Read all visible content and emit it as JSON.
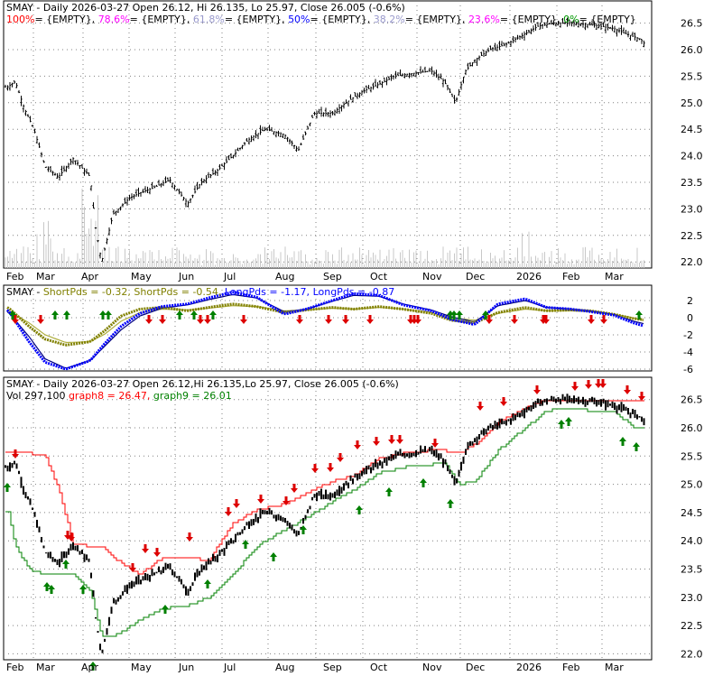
{
  "colors": {
    "background": "#ffffff",
    "frame": "#000000",
    "grid": "#808080",
    "price_bar": "#000000",
    "volume": "#c8c8c8",
    "fib_100": "#ff0000",
    "fib_78_6": "#ff00ff",
    "fib_61_8": "#9999cc",
    "fib_50": "#0000ff",
    "fib_38_2": "#9999cc",
    "fib_23_6": "#ff00ff",
    "fib_0": "#009900",
    "short_pds": "#808000",
    "short_pds_signal": "#808000",
    "long_pds": "#0000ff",
    "long_pds_signal": "#000080",
    "graph8": "#ff0000",
    "graph9": "#008000",
    "buy_arrow": "#008000",
    "sell_arrow": "#dd0000",
    "muted_text": "#000000"
  },
  "panel1": {
    "title": "SMAY - Daily 2026-03-27 Open 26.12, Hi 26.135, Lo 25.97, Close 26.005 (-0.6%)",
    "fib_legend": [
      {
        "label": "100%",
        "text": "= {EMPTY},",
        "color": "#ff0000"
      },
      {
        "label": "78.6%",
        "text": "= {EMPTY},",
        "color": "#ff00ff"
      },
      {
        "label": "61.8%",
        "text": "= {EMPTY},",
        "color": "#9999cc"
      },
      {
        "label": "50%",
        "text": "= {EMPTY},",
        "color": "#0000ff"
      },
      {
        "label": "38.2%",
        "text": "= {EMPTY},",
        "color": "#9999cc"
      },
      {
        "label": "23.6%",
        "text": "= {EMPTY},",
        "color": "#ff00ff"
      },
      {
        "label": "0%",
        "text": "= {EMPTY}",
        "color": "#009900"
      }
    ],
    "y_ticks": [
      "26.5",
      "26.0",
      "25.5",
      "25.0",
      "24.5",
      "24.0",
      "23.5",
      "23.0",
      "22.5",
      "22.0"
    ],
    "x_ticks": [
      "Feb",
      "Mar",
      "Apr",
      "May",
      "Jun",
      "Jul",
      "Aug",
      "Sep",
      "Oct",
      "Nov",
      "Dec",
      "2026",
      "Feb",
      "Mar"
    ]
  },
  "panel2": {
    "legend": [
      {
        "label": "SMAY - ",
        "color": "#000000"
      },
      {
        "label": "ShortPds = -0.32,",
        "color": "#808000"
      },
      {
        "label": "ShortPds = -0.54,",
        "color": "#808000"
      },
      {
        "label": "LongPds = -1.17,",
        "color": "#0000ff"
      },
      {
        "label": "LongPds = -0.87",
        "color": "#0000ff"
      }
    ],
    "y_ticks": [
      "2",
      "0",
      "-2",
      "-4",
      "-6"
    ]
  },
  "panel3": {
    "title": "SMAY - Daily 2026-03-27 Open 26.12,Hi 26.135,Lo 25.97, Close 26.005 (-0.6%)",
    "legend": [
      {
        "label": "Vol 297,100",
        "color": "#000000"
      },
      {
        "label": "graph8 = 26.47,",
        "color": "#ff0000"
      },
      {
        "label": "graph9 = 26.01",
        "color": "#008000"
      }
    ],
    "y_ticks": [
      "26.5",
      "26.0",
      "25.5",
      "25.0",
      "24.5",
      "24.0",
      "23.5",
      "23.0",
      "22.5",
      "22.0"
    ],
    "x_ticks": [
      "Feb",
      "Mar",
      "Apr",
      "May",
      "Jun",
      "Jul",
      "Aug",
      "Sep",
      "Oct",
      "Nov",
      "Dec",
      "2026",
      "Feb",
      "Mar"
    ]
  },
  "chart_data": [
    {
      "type": "line",
      "title": "SMAY - Daily 2026-03-27 Open 26.12, Hi 26.135, Lo 25.97, Close 26.005 (-0.6%)",
      "ylim": [
        21.8,
        26.75
      ],
      "x": [
        "Jan 24",
        "Feb 1",
        "Feb 10",
        "Feb 20",
        "Mar 1",
        "Mar 10",
        "Mar 20",
        "Apr 1",
        "Apr 4",
        "Apr 8",
        "Apr 15",
        "Apr 25",
        "May 1",
        "May 10",
        "May 20",
        "Jun 1",
        "Jun 10",
        "Jun 20",
        "Jul 1",
        "Jul 10",
        "Jul 20",
        "Aug 1",
        "Aug 10",
        "Aug 20",
        "Sep 1",
        "Sep 10",
        "Sep 20",
        "Oct 1",
        "Oct 10",
        "Oct 20",
        "Nov 1",
        "Nov 10",
        "Nov 18",
        "Nov 25",
        "Dec 1",
        "Dec 10",
        "Dec 20",
        "Jan 1",
        "Jan 10",
        "Jan 20",
        "Feb 1",
        "Feb 10",
        "Feb 20",
        "Mar 1",
        "Mar 10",
        "Mar 20",
        "Mar 27"
      ],
      "series": [
        {
          "values": [
            25.3,
            25.4,
            24.9,
            24.5,
            23.8,
            23.6,
            23.95,
            23.6,
            22.7,
            22.0,
            22.9,
            23.2,
            23.3,
            23.4,
            23.55,
            23.1,
            23.5,
            23.7,
            24.0,
            24.3,
            24.5,
            24.4,
            24.1,
            24.8,
            24.8,
            25.0,
            25.2,
            25.35,
            25.5,
            25.55,
            25.6,
            25.4,
            25.0,
            25.6,
            25.8,
            26.0,
            26.1,
            26.3,
            26.45,
            26.5,
            26.5,
            26.48,
            26.45,
            26.4,
            26.3,
            26.2,
            26.005
          ]
        }
      ]
    },
    {
      "type": "line",
      "ylim": [
        -7,
        3.5
      ],
      "x": [
        "Jan 24",
        "Feb 15",
        "Mar 1",
        "Mar 15",
        "Apr 1",
        "Apr 10",
        "Apr 20",
        "May 1",
        "May 15",
        "Jun 1",
        "Jun 15",
        "Jul 1",
        "Jul 15",
        "Aug 1",
        "Aug 15",
        "Sep 1",
        "Sep 15",
        "Oct 1",
        "Oct 15",
        "Nov 1",
        "Nov 15",
        "Dec 1",
        "Dec 15",
        "Jan 1",
        "Jan 15",
        "Feb 1",
        "Feb 15",
        "Mar 1",
        "Mar 15",
        "Mar 27"
      ],
      "series": [
        {
          "name": "ShortPds",
          "values": [
            1.2,
            -1.0,
            -2.5,
            -3.2,
            -2.8,
            -1.5,
            0.2,
            1.0,
            1.2,
            0.8,
            1.2,
            1.6,
            1.3,
            0.6,
            0.9,
            1.2,
            1.0,
            1.3,
            1.0,
            0.5,
            -0.3,
            -0.6,
            0.6,
            1.2,
            0.8,
            0.9,
            0.8,
            0.4,
            -0.1,
            -0.32
          ]
        },
        {
          "name": "ShortPds",
          "values": [
            0.8,
            -0.6,
            -2.0,
            -2.9,
            -2.8,
            -1.9,
            -0.4,
            0.6,
            1.0,
            0.9,
            1.1,
            1.4,
            1.3,
            0.8,
            0.9,
            1.1,
            1.0,
            1.2,
            1.0,
            0.6,
            0.0,
            -0.3,
            0.5,
            1.0,
            0.8,
            0.8,
            0.7,
            0.4,
            0.0,
            -0.54
          ]
        },
        {
          "name": "LongPds",
          "values": [
            0.9,
            -2.8,
            -5.2,
            -6.0,
            -5.0,
            -3.0,
            -1.0,
            0.5,
            1.3,
            1.6,
            2.3,
            3.0,
            2.4,
            0.4,
            1.0,
            2.0,
            2.8,
            2.6,
            1.5,
            0.8,
            -0.2,
            -0.8,
            1.6,
            2.2,
            1.2,
            1.0,
            0.7,
            0.3,
            -0.6,
            -1.17
          ]
        },
        {
          "name": "LongPds",
          "values": [
            0.7,
            -2.2,
            -4.8,
            -5.9,
            -5.0,
            -3.3,
            -1.4,
            0.2,
            1.1,
            1.5,
            2.1,
            2.7,
            2.3,
            0.7,
            1.0,
            1.9,
            2.6,
            2.5,
            1.6,
            0.9,
            0.1,
            -0.5,
            1.4,
            2.0,
            1.2,
            1.0,
            0.8,
            0.4,
            -0.4,
            -0.87
          ]
        }
      ]
    },
    {
      "type": "line",
      "title": "SMAY - Daily 2026-03-27 Open 26.12,Hi 26.135,Lo 25.97, Close 26.005 (-0.6%)",
      "ylim": [
        21.8,
        26.75
      ],
      "x": [
        "Jan 24",
        "Feb 1",
        "Feb 15",
        "Mar 1",
        "Mar 10",
        "Mar 20",
        "Apr 1",
        "Apr 8",
        "Apr 15",
        "May 1",
        "May 15",
        "Jun 1",
        "Jun 15",
        "Jul 1",
        "Jul 15",
        "Aug 1",
        "Aug 15",
        "Sep 1",
        "Sep 15",
        "Oct 1",
        "Oct 15",
        "Nov 1",
        "Nov 10",
        "Nov 20",
        "Dec 1",
        "Dec 15",
        "Jan 1",
        "Jan 15",
        "Feb 1",
        "Feb 15",
        "Mar 1",
        "Mar 15",
        "Mar 27"
      ],
      "series": [
        {
          "name": "graph8",
          "values": [
            25.55,
            25.55,
            25.55,
            25.5,
            24.9,
            23.95,
            23.9,
            23.9,
            23.7,
            23.4,
            23.7,
            23.7,
            23.65,
            24.3,
            24.55,
            24.65,
            24.85,
            25.05,
            25.15,
            25.45,
            25.55,
            25.6,
            25.6,
            25.55,
            25.7,
            26.1,
            26.35,
            26.5,
            26.5,
            26.5,
            26.5,
            26.47,
            26.47
          ]
        },
        {
          "name": "graph9",
          "values": [
            24.5,
            23.9,
            23.5,
            23.4,
            23.4,
            23.4,
            23.1,
            22.3,
            22.3,
            22.6,
            22.8,
            22.85,
            23.0,
            23.4,
            23.9,
            24.2,
            24.4,
            24.7,
            24.9,
            25.2,
            25.3,
            25.35,
            25.4,
            25.0,
            25.05,
            25.6,
            26.0,
            26.3,
            26.35,
            26.3,
            26.3,
            26.01,
            26.01
          ]
        }
      ]
    }
  ]
}
